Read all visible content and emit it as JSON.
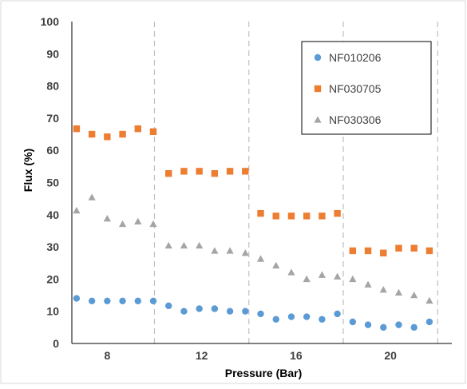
{
  "chart_data": {
    "type": "scatter",
    "xlabel": "Pressure (Bar)",
    "ylabel": "Flux (%)",
    "xlim": [
      6.5,
      22.6
    ],
    "ylim": [
      0,
      100
    ],
    "x_ticks": [
      8,
      12,
      16,
      20
    ],
    "y_ticks": [
      0,
      10,
      20,
      30,
      40,
      50,
      60,
      70,
      80,
      90,
      100
    ],
    "grid": false,
    "vertical_dashed_lines": [
      10,
      14,
      18,
      22
    ],
    "legend_position": "top-right",
    "series": [
      {
        "name": "NF010206",
        "marker": "circle",
        "color": "#5b9bd5",
        "x": [
          6.7,
          7.35,
          8.0,
          8.65,
          9.3,
          9.95,
          10.6,
          11.25,
          11.9,
          12.55,
          13.2,
          13.85,
          14.5,
          15.15,
          15.8,
          16.45,
          17.1,
          17.75,
          18.4,
          19.05,
          19.7,
          20.35,
          21.0,
          21.65
        ],
        "y": [
          14,
          13.2,
          13.2,
          13.2,
          13.2,
          13.2,
          11.7,
          10,
          10.8,
          10.8,
          10,
          10,
          9.2,
          7.5,
          8.3,
          8.3,
          7.5,
          9.2,
          6.7,
          5.8,
          5,
          5.8,
          5,
          6.7
        ]
      },
      {
        "name": "NF030705",
        "marker": "square",
        "color": "#ed7d31",
        "x": [
          6.7,
          7.35,
          8.0,
          8.65,
          9.3,
          9.95,
          10.6,
          11.25,
          11.9,
          12.55,
          13.2,
          13.85,
          14.5,
          15.15,
          15.8,
          16.45,
          17.1,
          17.75,
          18.4,
          19.05,
          19.7,
          20.35,
          21.0,
          21.65
        ],
        "y": [
          66.7,
          65,
          64.2,
          65,
          66.7,
          65.8,
          52.8,
          53.5,
          53.5,
          52.8,
          53.5,
          53.5,
          40.4,
          39.6,
          39.6,
          39.6,
          39.6,
          40.4,
          28.8,
          28.8,
          28.1,
          29.6,
          29.6,
          28.8
        ]
      },
      {
        "name": "NF030306",
        "marker": "triangle",
        "color": "#a5a5a5",
        "x": [
          6.7,
          7.35,
          8.0,
          8.65,
          9.3,
          9.95,
          10.6,
          11.25,
          11.9,
          12.55,
          13.2,
          13.85,
          14.5,
          15.15,
          15.8,
          16.45,
          17.1,
          17.75,
          18.4,
          19.05,
          19.7,
          20.35,
          21.0,
          21.65
        ],
        "y": [
          41.3,
          45.4,
          38.8,
          37.1,
          37.9,
          37.1,
          30.4,
          30.4,
          30.4,
          28.8,
          28.8,
          28.1,
          26.3,
          24.2,
          22.1,
          20,
          21.3,
          20.8,
          20,
          18.3,
          16.7,
          15.8,
          15,
          13.3
        ]
      }
    ]
  }
}
